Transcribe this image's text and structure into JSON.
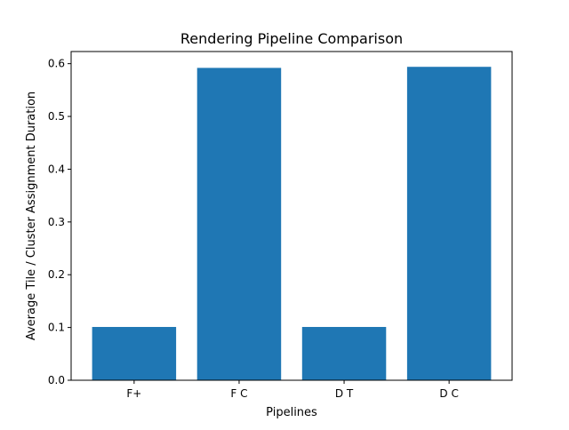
{
  "chart_data": {
    "type": "bar",
    "title": "Rendering Pipeline Comparison",
    "xlabel": "Pipelines",
    "ylabel": "Average Tile / Cluster Assignment Duration",
    "categories": [
      "F+",
      "F C",
      "D T",
      "D C"
    ],
    "values": [
      0.101,
      0.592,
      0.101,
      0.594
    ],
    "ylim": [
      0,
      0.623
    ],
    "yticks": [
      0.0,
      0.1,
      0.2,
      0.3,
      0.4,
      0.5,
      0.6
    ],
    "ytick_labels": [
      "0.0",
      "0.1",
      "0.2",
      "0.3",
      "0.4",
      "0.5",
      "0.6"
    ],
    "bar_color": "#1f77b4",
    "grid": false,
    "legend": "none"
  }
}
